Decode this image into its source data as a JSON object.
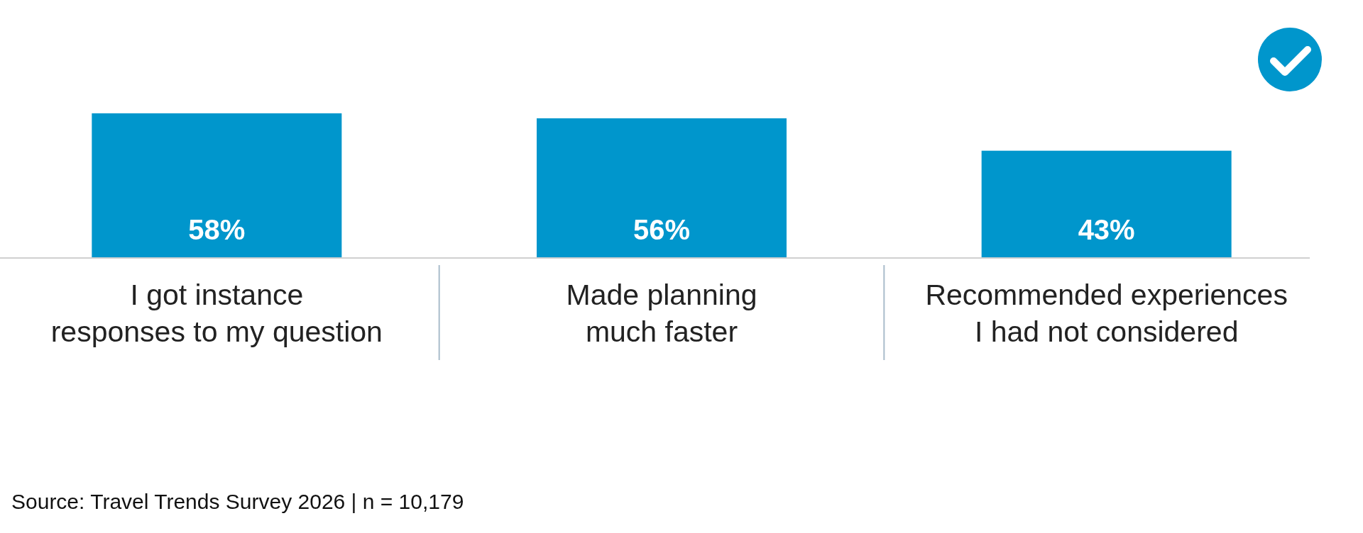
{
  "chart_data": {
    "type": "bar",
    "categories": [
      "I got instance responses to my question",
      "Made planning much faster",
      "Recommended experiences I had not considered"
    ],
    "values": [
      58,
      56,
      43
    ],
    "color": "#0096cc",
    "data_labels": true,
    "value_labels": [
      "58%",
      "56%",
      "43%"
    ],
    "annotations": [
      "Source: Travel Trends Survey 2026 | n = 10,179"
    ]
  }
}
